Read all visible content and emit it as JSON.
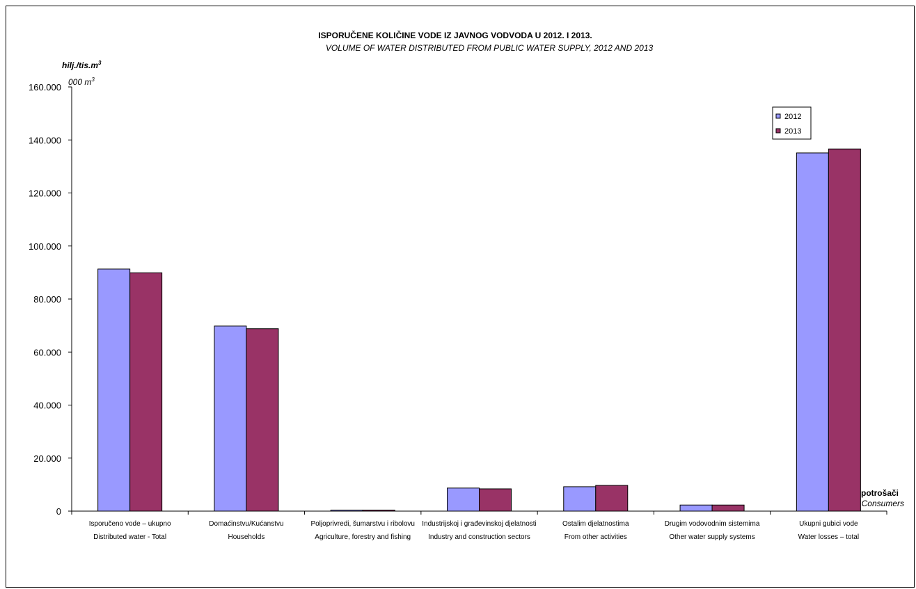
{
  "chart_data": {
    "type": "bar",
    "title": "ISPORUČENE KOLIČINE VODE IZ JAVNOG VODVODA U 2012. I 2013.",
    "subtitle": "VOLUME OF WATER DISTRIBUTED FROM PUBLIC WATER SUPPLY, 2012 AND 2013",
    "ylabel": {
      "line1": "hilj./tis.m",
      "line1_sup": "3",
      "line2": "000 m",
      "line2_sup": "3"
    },
    "xlabel": {
      "line1": "potrošači",
      "line2": "Consumers"
    },
    "ylim": [
      0,
      160000
    ],
    "yticks": [
      "0",
      "20.000",
      "40.000",
      "60.000",
      "80.000",
      "100.000",
      "120.000",
      "140.000",
      "160.000"
    ],
    "ytick_values": [
      0,
      20000,
      40000,
      60000,
      80000,
      100000,
      120000,
      140000,
      160000
    ],
    "categories": [
      {
        "line1": "Isporučeno vode – ukupno",
        "line2": "Distributed water - Total"
      },
      {
        "line1": "Domaćinstvu/Kućanstvu",
        "line2": "Households"
      },
      {
        "line1": "Poljoprivredi, šumarstvu i ribolovu",
        "line2": "Agriculture, forestry and fishing"
      },
      {
        "line1": "Industrijskoj i građevinskoj djelatnosti",
        "line2": "Industry and construction sectors"
      },
      {
        "line1": "Ostalim djelatnostima",
        "line2": "From other activities"
      },
      {
        "line1": "Drugim vodovodnim sistemima",
        "line2": "Other water supply systems"
      },
      {
        "line1": "Ukupni gubici vode",
        "line2": "Water losses – total"
      }
    ],
    "series": [
      {
        "name": "2012",
        "color": "#9999ff",
        "values": [
          91300,
          69800,
          400,
          8700,
          9200,
          2300,
          135100
        ]
      },
      {
        "name": "2013",
        "color": "#993366",
        "values": [
          89900,
          68800,
          400,
          8400,
          9700,
          2300,
          136600
        ]
      }
    ],
    "legend_position": "top-right",
    "grid": false
  }
}
